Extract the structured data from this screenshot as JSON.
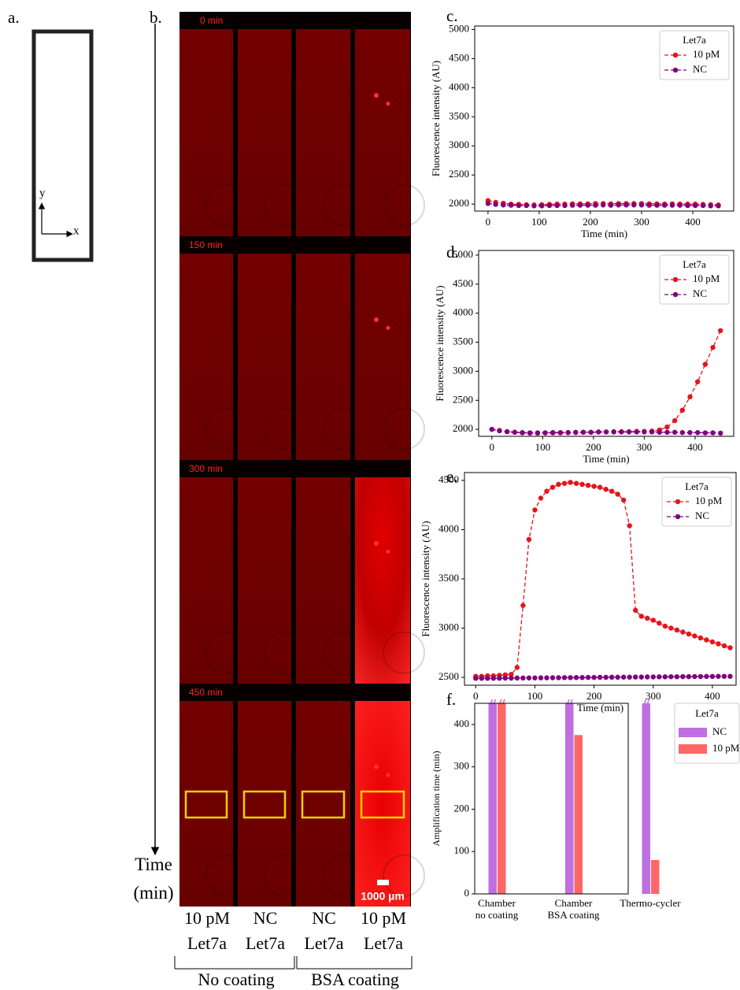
{
  "panel_labels": [
    "a.",
    "b.",
    "c.",
    "d.",
    "e.",
    "f."
  ],
  "panel_a": {
    "y_label": "y",
    "x_label": "x"
  },
  "panel_b": {
    "time_labels": [
      "0 min",
      "150 min",
      "300 min",
      "450 min"
    ],
    "time_axis_label": "Time\n(min)",
    "scale_bar": "1000 µm",
    "columns": [
      {
        "condition": "10 pM",
        "target": "Let7a"
      },
      {
        "condition": "NC",
        "target": "Let7a"
      },
      {
        "condition": "NC",
        "target": "Let7a"
      },
      {
        "condition": "10 pM",
        "target": "Let7a"
      }
    ],
    "groups": [
      "No coating",
      "BSA coating"
    ]
  },
  "chart_data": [
    {
      "type": "line",
      "xlabel": "Time (min)",
      "ylabel": "Fluorescence intensity (AU)",
      "legend_title": "Let7a",
      "legend": "upper right",
      "x": [
        0,
        15,
        30,
        45,
        60,
        75,
        90,
        105,
        120,
        135,
        150,
        165,
        180,
        195,
        210,
        225,
        240,
        255,
        270,
        285,
        300,
        315,
        330,
        345,
        360,
        375,
        390,
        405,
        420,
        435,
        450
      ],
      "series": [
        {
          "name": "10 pM",
          "color": "#e8131b",
          "values": [
            2060,
            2030,
            2015,
            2000,
            1995,
            1990,
            1985,
            1990,
            1995,
            2000,
            2000,
            2005,
            2005,
            2005,
            2010,
            2010,
            2005,
            2010,
            2010,
            2010,
            2010,
            2005,
            2005,
            2000,
            2005,
            2000,
            2000,
            2000,
            1995,
            1990,
            1985
          ]
        },
        {
          "name": "NC",
          "color": "#800080",
          "values": [
            2010,
            1995,
            1985,
            1980,
            1975,
            1975,
            1970,
            1970,
            1975,
            1975,
            1975,
            1980,
            1980,
            1980,
            1980,
            1985,
            1980,
            1985,
            1985,
            1985,
            1985,
            1980,
            1980,
            1980,
            1980,
            1980,
            1975,
            1975,
            1975,
            1970,
            1970
          ]
        }
      ],
      "xlim": [
        -26,
        480
      ],
      "ylim": [
        1880,
        5060
      ],
      "xticks": [
        0,
        100,
        200,
        300,
        400
      ],
      "yticks": [
        2000,
        2500,
        3000,
        3500,
        4000,
        4500,
        5000
      ],
      "grid": false
    },
    {
      "type": "line",
      "xlabel": "Time (min)",
      "ylabel": "Fluorescence intensity (AU)",
      "legend_title": "Let7a",
      "legend": "upper right",
      "x": [
        0,
        15,
        30,
        45,
        60,
        75,
        90,
        105,
        120,
        135,
        150,
        165,
        180,
        195,
        210,
        225,
        240,
        255,
        270,
        285,
        300,
        315,
        330,
        345,
        360,
        375,
        390,
        405,
        420,
        435,
        450
      ],
      "series": [
        {
          "name": "10 pM",
          "color": "#e8131b",
          "values": [
            2000,
            1980,
            1960,
            1950,
            1940,
            1935,
            1935,
            1940,
            1940,
            1940,
            1945,
            1945,
            1950,
            1950,
            1955,
            1955,
            1960,
            1960,
            1960,
            1965,
            1965,
            1970,
            1990,
            2040,
            2150,
            2330,
            2560,
            2820,
            3120,
            3410,
            3700
          ]
        },
        {
          "name": "NC",
          "color": "#800080",
          "values": [
            2000,
            1975,
            1960,
            1950,
            1945,
            1940,
            1940,
            1940,
            1945,
            1945,
            1945,
            1950,
            1950,
            1950,
            1955,
            1955,
            1955,
            1955,
            1955,
            1955,
            1955,
            1955,
            1950,
            1950,
            1950,
            1945,
            1945,
            1945,
            1940,
            1940,
            1935
          ]
        }
      ],
      "xlim": [
        -26,
        476
      ],
      "ylim": [
        1880,
        5080
      ],
      "xticks": [
        0,
        100,
        200,
        300,
        400
      ],
      "yticks": [
        2000,
        2500,
        3000,
        3500,
        4000,
        4500,
        5000
      ],
      "grid": false
    },
    {
      "type": "line",
      "xlabel": "Time (min)",
      "ylabel": "Fluorescence intensity (AU)",
      "legend_title": "Let7a",
      "legend": "upper right",
      "x": [
        0,
        10,
        20,
        30,
        40,
        50,
        60,
        70,
        80,
        90,
        100,
        110,
        120,
        130,
        140,
        150,
        160,
        170,
        180,
        190,
        200,
        210,
        220,
        230,
        240,
        250,
        260,
        270,
        280,
        290,
        300,
        310,
        320,
        330,
        340,
        350,
        360,
        370,
        380,
        390,
        400,
        410,
        420,
        430
      ],
      "series": [
        {
          "name": "10 pM",
          "color": "#e8131b",
          "values": [
            2510,
            2510,
            2515,
            2515,
            2520,
            2525,
            2530,
            2600,
            3230,
            3900,
            4200,
            4320,
            4390,
            4430,
            4460,
            4470,
            4480,
            4470,
            4460,
            4450,
            4440,
            4430,
            4410,
            4390,
            4360,
            4300,
            4040,
            3180,
            3120,
            3100,
            3080,
            3050,
            3020,
            3000,
            2980,
            2960,
            2940,
            2920,
            2900,
            2880,
            2860,
            2840,
            2820,
            2800
          ]
        },
        {
          "name": "NC",
          "color": "#800080",
          "values": [
            2490,
            2490,
            2490,
            2490,
            2491,
            2492,
            2492,
            2493,
            2493,
            2494,
            2494,
            2495,
            2495,
            2496,
            2496,
            2497,
            2497,
            2498,
            2498,
            2499,
            2499,
            2500,
            2500,
            2501,
            2501,
            2502,
            2502,
            2503,
            2503,
            2504,
            2504,
            2505,
            2505,
            2506,
            2506,
            2507,
            2507,
            2508,
            2508,
            2509,
            2509,
            2510,
            2510,
            2510
          ]
        }
      ],
      "xlim": [
        -19,
        440
      ],
      "ylim": [
        2420,
        4580
      ],
      "xticks": [
        0,
        100,
        200,
        300,
        400
      ],
      "yticks": [
        2500,
        3000,
        3500,
        4000,
        4500
      ],
      "grid": false
    },
    {
      "type": "bar",
      "ylabel": "Amplification time (min)",
      "legend_title": "Let7a",
      "legend": "outside right",
      "categories": [
        "Chamber\nno coating",
        "Chamber\nBSA coating",
        "Thermo-cycler"
      ],
      "series": [
        {
          "name": "NC",
          "color": "#bf6fe0",
          "values": [
            450,
            450,
            450
          ]
        },
        {
          "name": "10 pM",
          "color": "#ff6666",
          "values": [
            450,
            375,
            80
          ]
        }
      ],
      "ylim": [
        0,
        450
      ],
      "yticks": [
        0,
        100,
        200,
        300,
        400
      ],
      "grid": false
    }
  ]
}
